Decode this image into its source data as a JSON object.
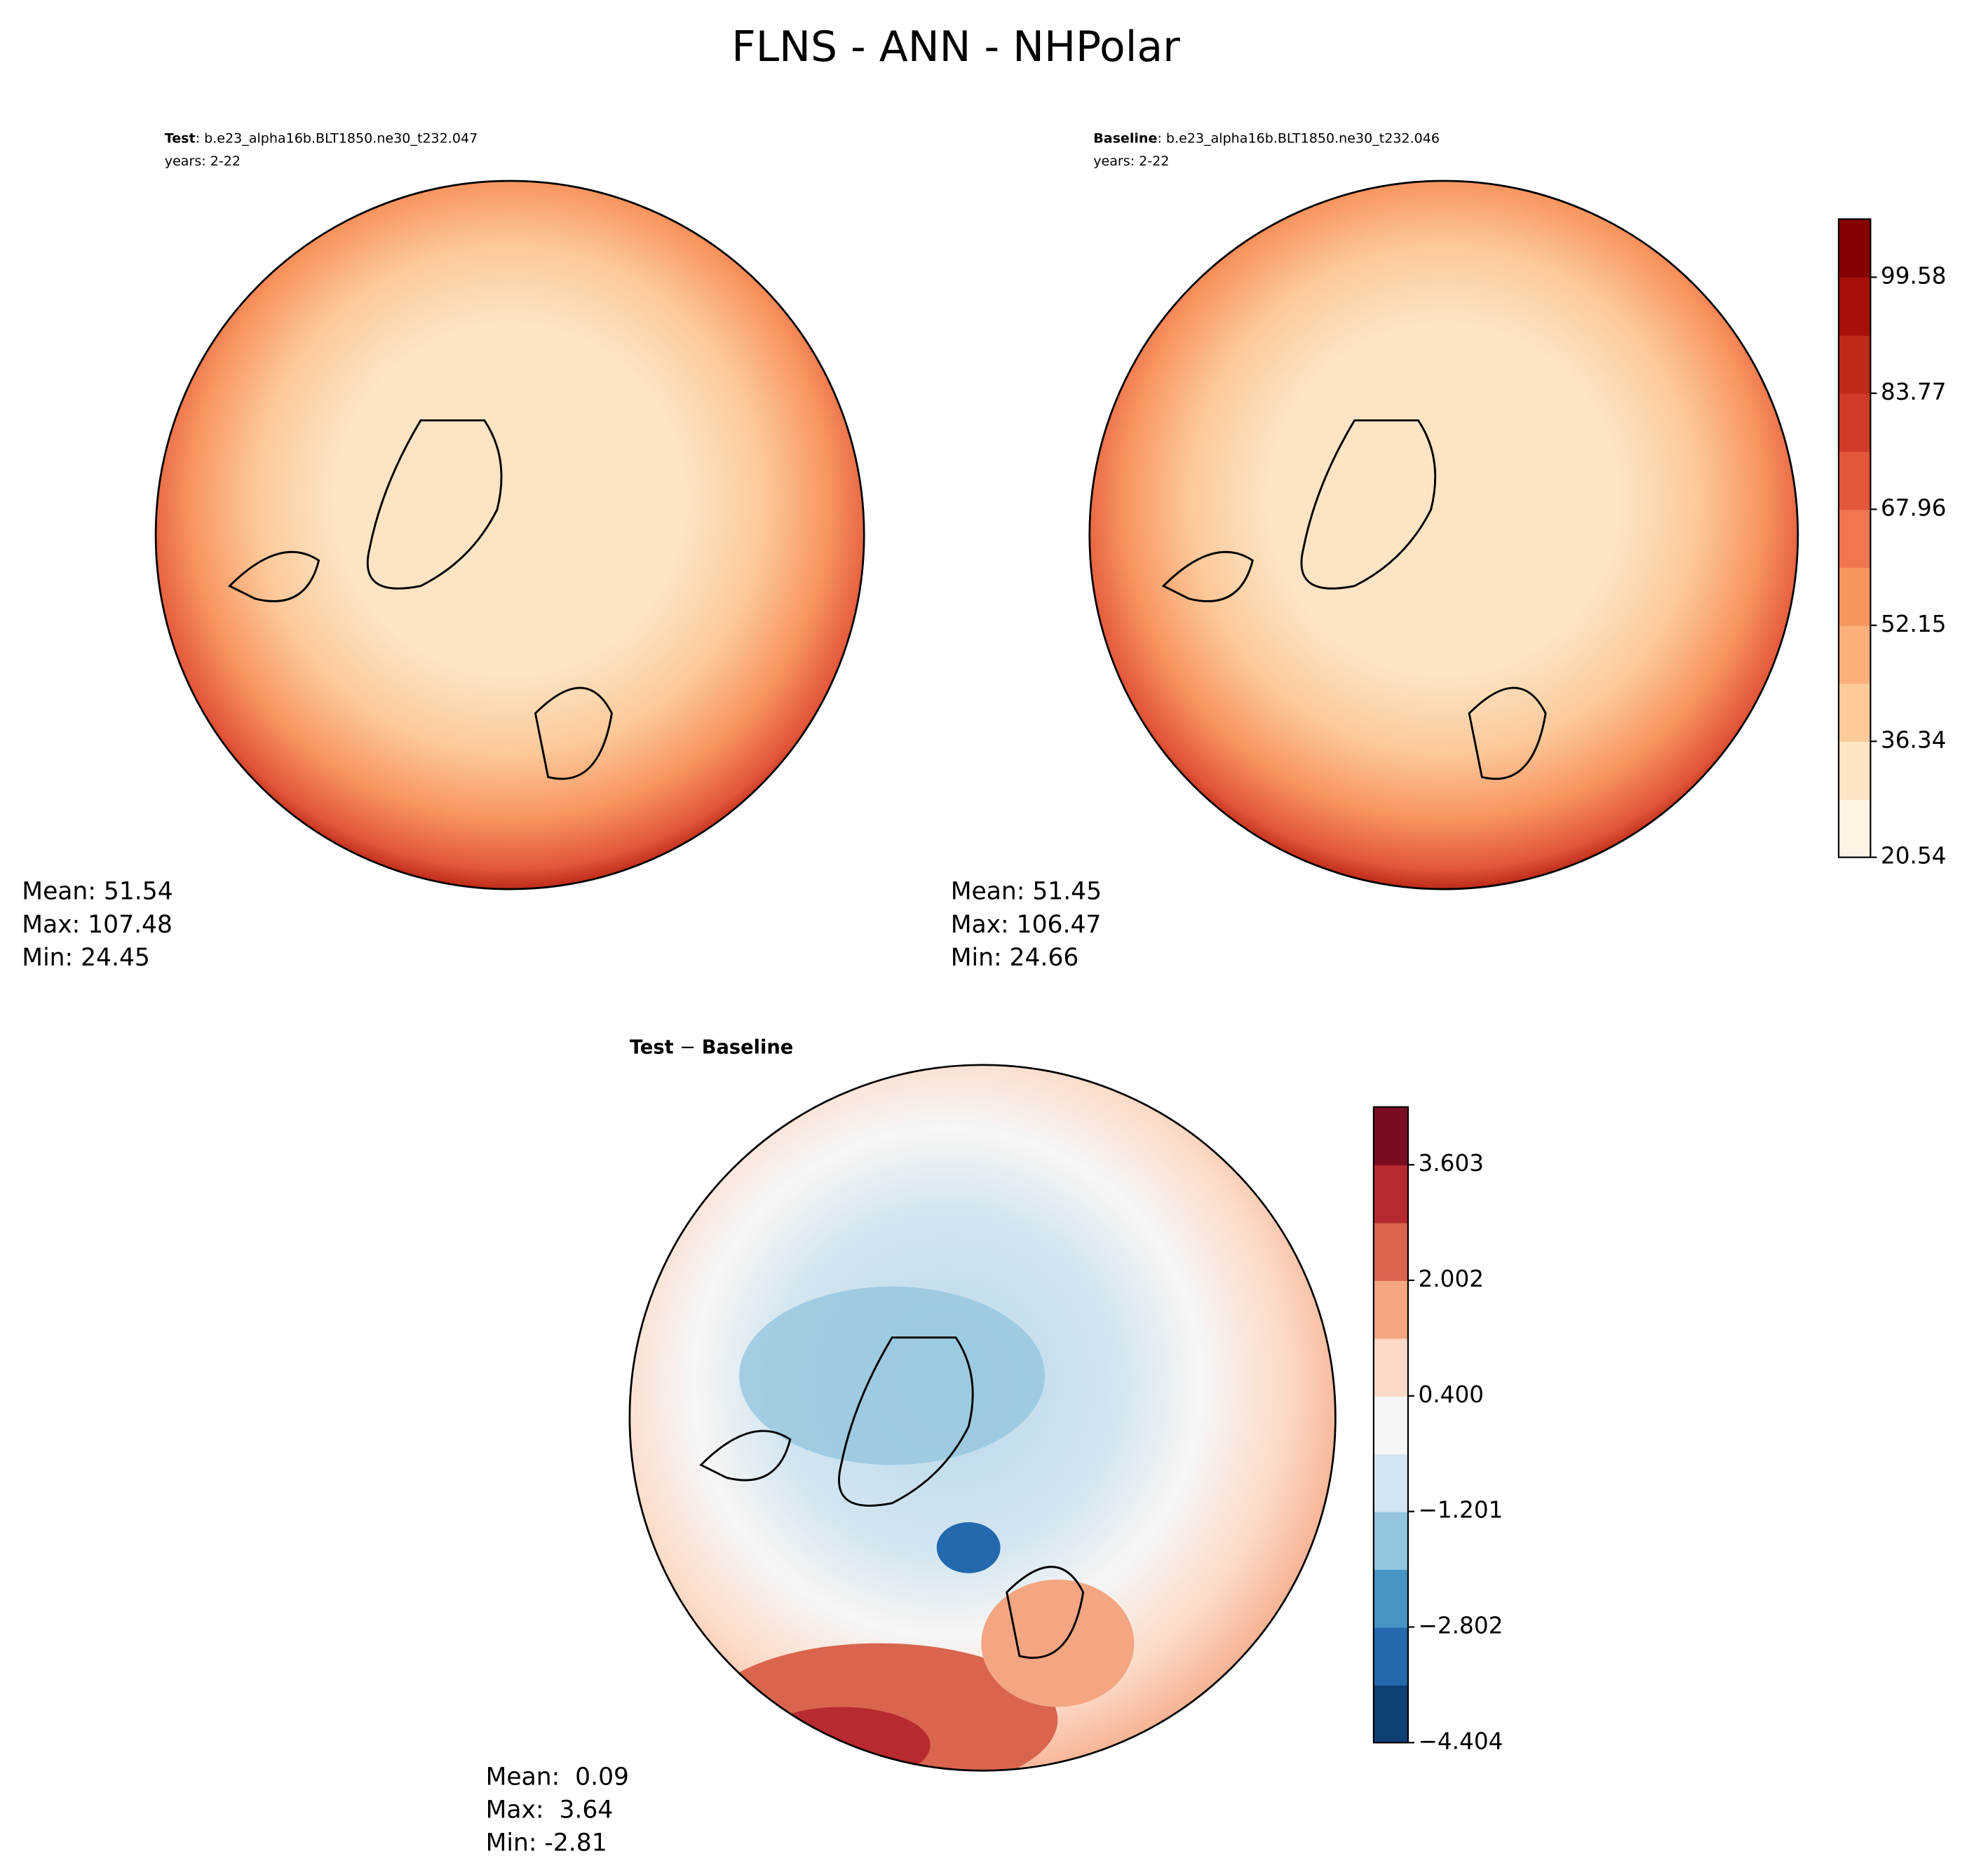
{
  "title": "FLNS - ANN - NHPolar",
  "panels": [
    {
      "label": "Test",
      "case": ": b.e23_alpha16b.BLT1850.ne30_t232.047",
      "years": "years: 2-22",
      "stats": [
        "Mean: 51.54",
        "Max: 107.48",
        "Min: 24.45"
      ]
    },
    {
      "label": "Baseline",
      "case": ": b.e23_alpha16b.BLT1850.ne30_t232.046",
      "years": "years: 2-22",
      "stats": [
        "Mean: 51.45",
        "Max: 106.47",
        "Min: 24.66"
      ]
    },
    {
      "label": "Test",
      "operator": " − ",
      "label2": "Baseline",
      "stats": [
        "Mean:  0.09",
        "Max:  3.64",
        "Min: -2.81"
      ]
    }
  ],
  "colorbars": [
    {
      "lim": [
        20.54,
        107.5
      ],
      "ticks": [
        20.54,
        36.34,
        52.15,
        67.96,
        83.77,
        99.58
      ],
      "colors": [
        "#fef4e6",
        "#fde4c4",
        "#fdcb9a",
        "#fbb07a",
        "#f8955f",
        "#f07650",
        "#e25639",
        "#d03c28",
        "#be2a19",
        "#a7100b",
        "#850000"
      ]
    },
    {
      "lim": [
        -4.404,
        4.404
      ],
      "ticks": [
        {
          "value": -4.404,
          "label": "−4.404"
        },
        {
          "value": -2.802,
          "label": "−2.802"
        },
        {
          "value": -1.201,
          "label": "−1.201"
        },
        {
          "value": 0.4,
          "label": "0.400"
        },
        2.002,
        3.603
      ],
      "colors": [
        "#0e3f75",
        "#2369ad",
        "#4694c4",
        "#93c5df",
        "#d2e5f0",
        "#f6f6f6",
        "#fcdac7",
        "#f4a683",
        "#d9654f",
        "#b72a2f",
        "#7a0c22"
      ]
    }
  ]
}
